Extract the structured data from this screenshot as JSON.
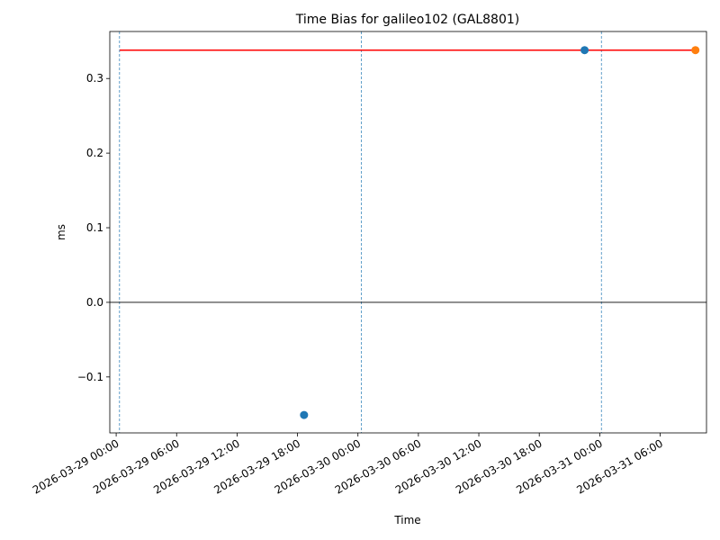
{
  "chart_data": {
    "type": "scatter",
    "title": "Time Bias for galileo102 (GAL8801)",
    "xlabel": "Time",
    "ylabel": "ms",
    "xlim": [
      "2026-03-28 23:22",
      "2026-03-31 10:36"
    ],
    "xticks": [
      "2026-03-29 00:00",
      "2026-03-29 06:00",
      "2026-03-29 12:00",
      "2026-03-29 18:00",
      "2026-03-30 00:00",
      "2026-03-30 06:00",
      "2026-03-30 12:00",
      "2026-03-30 18:00",
      "2026-03-31 00:00",
      "2026-03-31 06:00"
    ],
    "ylim": [
      -0.175,
      0.363
    ],
    "yticks": [
      {
        "value": -0.1,
        "label": "−0.1"
      },
      {
        "value": 0,
        "label": "0.0"
      },
      0.1,
      0.2,
      0.3
    ],
    "series": [
      {
        "style": "line",
        "color": "#ff0000",
        "x": [
          "2026-03-29 00:21",
          "2026-03-31 09:30"
        ],
        "values": [
          0.338,
          0.338
        ]
      },
      {
        "style": "marker",
        "color": "#1f77b4",
        "x": [
          "2026-03-29 18:39",
          "2026-03-30 22:30"
        ],
        "values": [
          -0.151,
          0.338
        ]
      },
      {
        "style": "marker",
        "color": "#ff7f0e",
        "x": [
          "2026-03-31 09:30"
        ],
        "values": [
          0.338
        ]
      }
    ],
    "hline": 0,
    "vlines": [
      "2026-03-29 00:20",
      "2026-03-30 00:20",
      "2026-03-31 00:10"
    ]
  }
}
